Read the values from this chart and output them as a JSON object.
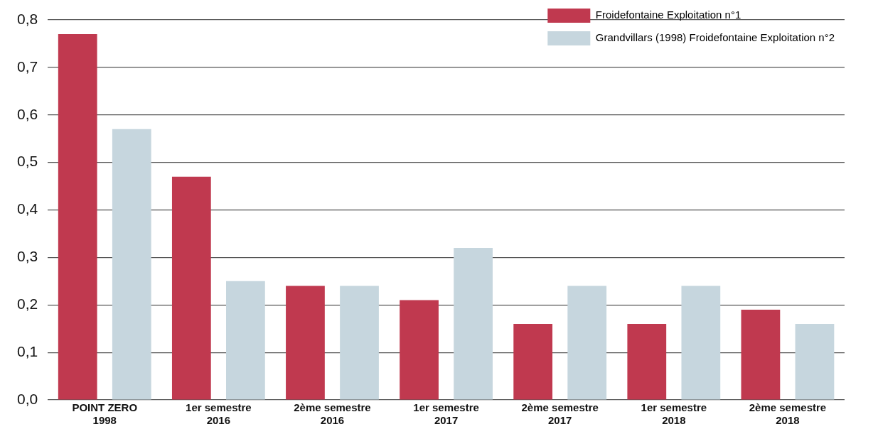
{
  "chart_data": {
    "type": "bar",
    "categories": [
      "POINT ZERO\n1998",
      "1er semestre\n2016",
      "2ème semestre\n2016",
      "1er semestre\n2017",
      "2ème semestre\n2017",
      "1er semestre\n2018",
      "2ème semestre\n2018"
    ],
    "series": [
      {
        "name": "Froidefontaine Exploitation n°1",
        "color": "#c0394f",
        "values": [
          0.77,
          0.47,
          0.24,
          0.21,
          0.16,
          0.16,
          0.19
        ]
      },
      {
        "name": "Grandvillars (1998) Froidefontaine Exploitation n°2",
        "color": "#c6d6de",
        "values": [
          0.57,
          0.25,
          0.24,
          0.32,
          0.24,
          0.24,
          0.16
        ]
      }
    ],
    "ylim": [
      0,
      0.8
    ],
    "yticks": [
      {
        "value": 0,
        "label": "0,0"
      },
      {
        "value": 0.1,
        "label": "0,1"
      },
      {
        "value": 0.2,
        "label": "0,2"
      },
      {
        "value": 0.3,
        "label": "0,3"
      },
      {
        "value": 0.4,
        "label": "0,4"
      },
      {
        "value": 0.5,
        "label": "0,5"
      },
      {
        "value": 0.6,
        "label": "0,6"
      },
      {
        "value": 0.7,
        "label": "0,7"
      },
      {
        "value": 0.8,
        "label": "0,8"
      }
    ],
    "grid": "y",
    "legend": "top right"
  }
}
